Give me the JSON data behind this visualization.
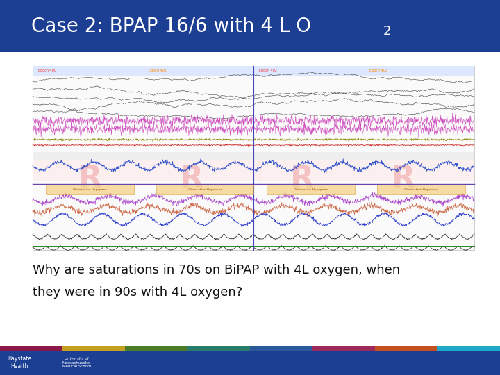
{
  "title_text": "Case 2: BPAP 16/6 with 4 L O",
  "title_subscript": "2",
  "title_bg_color": "#1c3f94",
  "title_text_color": "#ffffff",
  "body_bg_color": "#ffffff",
  "question_line1": "Why are saturations in 70s on BiPAP with 4L oxygen, when",
  "question_line2": "they were in 90s with 4L oxygen?",
  "question_text_color": "#111111",
  "footer_bg_color": "#1c3f94",
  "footer_stripe_colors": [
    "#8b1a4a",
    "#c4a020",
    "#4a7c2a",
    "#2a7c6a",
    "#2a5a9c",
    "#9c2a5a",
    "#c45020",
    "#20a8c8"
  ],
  "title_fontsize": 20,
  "question_fontsize": 13
}
